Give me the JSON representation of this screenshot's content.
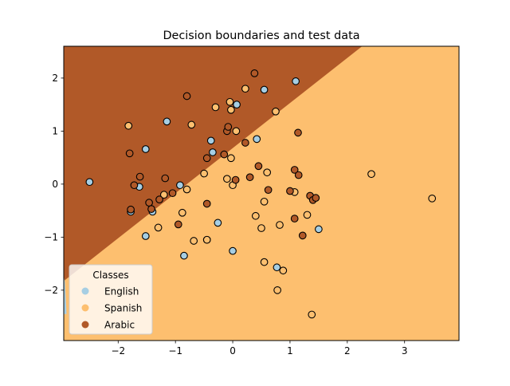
{
  "colors": {
    "english": "#a6cee3",
    "spanish": "#fdbf6f",
    "arabic": "#b15928",
    "marker_edge": "#000000"
  },
  "chart_data": {
    "type": "scatter",
    "title": "Decision boundaries and test data",
    "xlabel": "",
    "ylabel": "",
    "xlim": [
      -2.95,
      3.95
    ],
    "ylim": [
      -2.95,
      2.6
    ],
    "xticks": [
      -2,
      -1,
      0,
      1,
      2,
      3
    ],
    "yticks": [
      -2,
      -1,
      0,
      1,
      2
    ],
    "xtick_labels": [
      "−2",
      "−1",
      "0",
      "1",
      "2",
      "3"
    ],
    "ytick_labels": [
      "−2",
      "−1",
      "0",
      "1",
      "2"
    ],
    "grid": false,
    "legend": {
      "title": "Classes",
      "position": "lower-left"
    },
    "regions": [
      {
        "class": "Arabic",
        "description": "upper-left region above line y = 0.85*x + 0.68"
      },
      {
        "class": "Spanish",
        "description": "lower-right region below that line"
      },
      {
        "class": "English",
        "description": "small sliver at far left near x=-2.95, y=-2.3"
      }
    ],
    "series": [
      {
        "name": "English",
        "points": [
          [
            -2.5,
            0.04
          ],
          [
            -1.78,
            -0.52
          ],
          [
            -1.63,
            -0.05
          ],
          [
            -1.52,
            0.66
          ],
          [
            -1.52,
            -0.98
          ],
          [
            -1.4,
            -0.52
          ],
          [
            -1.15,
            1.18
          ],
          [
            -0.92,
            -0.02
          ],
          [
            -0.85,
            -1.35
          ],
          [
            -0.38,
            0.82
          ],
          [
            -0.35,
            0.6
          ],
          [
            -0.26,
            -0.73
          ],
          [
            0.0,
            -1.26
          ],
          [
            0.07,
            1.5
          ],
          [
            0.42,
            0.85
          ],
          [
            0.55,
            1.78
          ],
          [
            0.77,
            -1.57
          ],
          [
            1.1,
            1.94
          ],
          [
            1.5,
            -0.85
          ]
        ]
      },
      {
        "name": "Spanish",
        "points": [
          [
            -1.82,
            1.1
          ],
          [
            -1.3,
            -0.82
          ],
          [
            -1.2,
            -0.2
          ],
          [
            -0.88,
            -0.54
          ],
          [
            -0.8,
            -0.1
          ],
          [
            -0.72,
            1.12
          ],
          [
            -0.68,
            -1.07
          ],
          [
            -0.5,
            0.2
          ],
          [
            -0.45,
            -1.05
          ],
          [
            -0.45,
            -1.05
          ],
          [
            -0.3,
            1.45
          ],
          [
            -0.1,
            0.1
          ],
          [
            -0.05,
            1.55
          ],
          [
            -0.03,
            0.49
          ],
          [
            -0.03,
            1.4
          ],
          [
            0.0,
            -0.02
          ],
          [
            0.06,
            1.0
          ],
          [
            0.22,
            1.8
          ],
          [
            0.4,
            -0.6
          ],
          [
            0.5,
            -0.83
          ],
          [
            0.55,
            -0.33
          ],
          [
            0.55,
            -1.47
          ],
          [
            0.6,
            0.22
          ],
          [
            0.75,
            1.37
          ],
          [
            0.78,
            -2.0
          ],
          [
            0.82,
            -0.77
          ],
          [
            0.88,
            -1.63
          ],
          [
            1.08,
            -0.15
          ],
          [
            1.3,
            -0.58
          ],
          [
            1.38,
            -2.46
          ],
          [
            2.42,
            0.19
          ],
          [
            3.48,
            -0.27
          ]
        ]
      },
      {
        "name": "Arabic",
        "points": [
          [
            -1.8,
            0.58
          ],
          [
            -1.78,
            -0.48
          ],
          [
            -1.72,
            -0.02
          ],
          [
            -1.62,
            0.14
          ],
          [
            -1.46,
            -0.35
          ],
          [
            -1.42,
            -0.47
          ],
          [
            -1.28,
            -0.29
          ],
          [
            -1.18,
            0.11
          ],
          [
            -1.05,
            -0.17
          ],
          [
            -0.95,
            -0.76
          ],
          [
            -0.8,
            1.66
          ],
          [
            -0.45,
            -0.37
          ],
          [
            -0.45,
            0.49
          ],
          [
            -0.15,
            0.56
          ],
          [
            -0.1,
            1.0
          ],
          [
            -0.08,
            1.08
          ],
          [
            0.05,
            0.08
          ],
          [
            0.22,
            0.78
          ],
          [
            0.3,
            0.13
          ],
          [
            0.38,
            2.09
          ],
          [
            0.45,
            0.34
          ],
          [
            0.62,
            -0.11
          ],
          [
            1.0,
            -0.13
          ],
          [
            1.08,
            0.27
          ],
          [
            1.08,
            -0.65
          ],
          [
            1.14,
            0.97
          ],
          [
            1.15,
            0.17
          ],
          [
            1.22,
            -0.97
          ],
          [
            1.35,
            -0.22
          ],
          [
            1.4,
            -0.3
          ],
          [
            1.45,
            -0.26
          ]
        ]
      }
    ]
  }
}
